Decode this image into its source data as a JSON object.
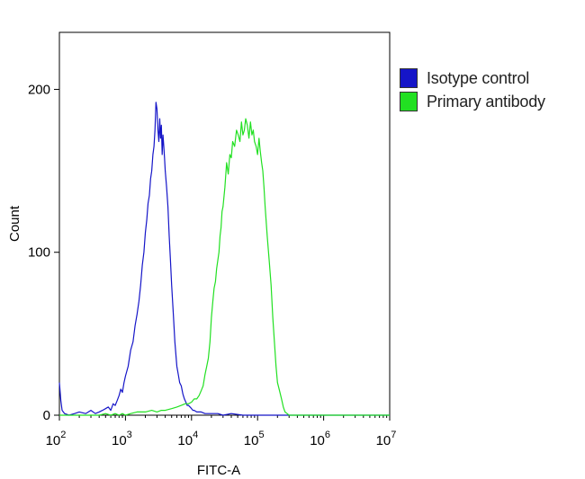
{
  "chart_data": {
    "type": "line",
    "title": "",
    "xlabel": "FITC-A",
    "ylabel": "Count",
    "xscale": "log",
    "xlim": [
      100,
      10000000
    ],
    "ylim": [
      0,
      235
    ],
    "x_ticks": [
      {
        "value": 100,
        "base": "10",
        "exp": "2"
      },
      {
        "value": 1000,
        "base": "10",
        "exp": "3"
      },
      {
        "value": 10000,
        "base": "10",
        "exp": "4"
      },
      {
        "value": 100000,
        "base": "10",
        "exp": "5"
      },
      {
        "value": 1000000,
        "base": "10",
        "exp": "6"
      },
      {
        "value": 10000000,
        "base": "10",
        "exp": "7"
      }
    ],
    "y_ticks": [
      {
        "value": 0,
        "label": "0"
      },
      {
        "value": 100,
        "label": "100"
      },
      {
        "value": 200,
        "label": "200"
      }
    ],
    "grid": false,
    "legend_position": "right",
    "series": [
      {
        "name": "Isotype control",
        "color": "#1515c8",
        "x": [
          100,
          105,
          110,
          120,
          140,
          170,
          200,
          250,
          300,
          350,
          400,
          450,
          500,
          550,
          600,
          650,
          700,
          750,
          800,
          850,
          900,
          950,
          1000,
          1100,
          1200,
          1300,
          1400,
          1500,
          1600,
          1700,
          1800,
          1900,
          2000,
          2100,
          2200,
          2300,
          2400,
          2500,
          2600,
          2700,
          2800,
          2900,
          3000,
          3100,
          3200,
          3300,
          3400,
          3500,
          3600,
          3700,
          3800,
          3900,
          4000,
          4200,
          4400,
          4600,
          4800,
          5000,
          5300,
          5600,
          6000,
          6300,
          6600,
          7000,
          7400,
          7800,
          8200,
          8600,
          9000,
          9500,
          10000,
          10500,
          11000,
          12000,
          13000,
          14000,
          16000,
          18000,
          20000,
          25000,
          30000,
          40000,
          60000,
          100000,
          200000,
          500000,
          1000000,
          10000000
        ],
        "values": [
          20,
          9,
          3,
          1,
          0,
          1,
          2,
          1,
          3,
          1,
          2,
          3,
          4,
          5,
          3,
          7,
          6,
          9,
          12,
          16,
          14,
          20,
          24,
          30,
          40,
          45,
          55,
          62,
          70,
          80,
          92,
          100,
          112,
          120,
          130,
          135,
          145,
          150,
          160,
          165,
          175,
          192,
          188,
          175,
          168,
          182,
          170,
          178,
          160,
          172,
          165,
          158,
          150,
          140,
          128,
          110,
          95,
          80,
          62,
          45,
          30,
          25,
          20,
          18,
          13,
          10,
          8,
          6,
          6,
          5,
          4,
          3,
          3,
          2,
          2,
          2,
          1,
          1,
          1,
          1,
          0,
          1,
          0,
          0,
          0,
          0,
          0,
          0
        ]
      },
      {
        "name": "Primary antibody",
        "color": "#22e022",
        "x": [
          100,
          200,
          300,
          400,
          500,
          600,
          700,
          800,
          900,
          1000,
          1200,
          1500,
          2000,
          2500,
          3000,
          3500,
          4000,
          5000,
          6000,
          7000,
          8000,
          9000,
          10000,
          11000,
          12000,
          13000,
          14000,
          15000,
          16000,
          17000,
          18000,
          19000,
          20000,
          21000,
          22000,
          23000,
          24000,
          25000,
          26000,
          27000,
          28000,
          29000,
          30000,
          32000,
          34000,
          36000,
          38000,
          40000,
          42000,
          45000,
          48000,
          51000,
          54000,
          57000,
          60000,
          63000,
          66000,
          70000,
          74000,
          78000,
          82000,
          86000,
          90000,
          95000,
          100000,
          105000,
          110000,
          115000,
          120000,
          125000,
          130000,
          140000,
          150000,
          160000,
          170000,
          180000,
          190000,
          200000,
          215000,
          230000,
          245000,
          260000,
          280000,
          300000,
          400000,
          1000000,
          10000000
        ],
        "values": [
          0,
          0,
          0,
          0,
          1,
          0,
          1,
          0,
          1,
          0,
          1,
          2,
          2,
          3,
          2,
          3,
          3,
          4,
          5,
          6,
          7,
          7,
          8,
          10,
          10,
          12,
          15,
          18,
          25,
          30,
          35,
          45,
          60,
          70,
          78,
          82,
          90,
          95,
          100,
          110,
          115,
          125,
          128,
          140,
          155,
          148,
          160,
          158,
          168,
          165,
          175,
          172,
          168,
          180,
          172,
          175,
          182,
          178,
          170,
          180,
          172,
          175,
          168,
          165,
          160,
          170,
          162,
          155,
          150,
          140,
          128,
          110,
          95,
          80,
          60,
          45,
          30,
          20,
          15,
          10,
          5,
          2,
          1,
          0,
          0,
          0,
          0
        ]
      }
    ]
  }
}
